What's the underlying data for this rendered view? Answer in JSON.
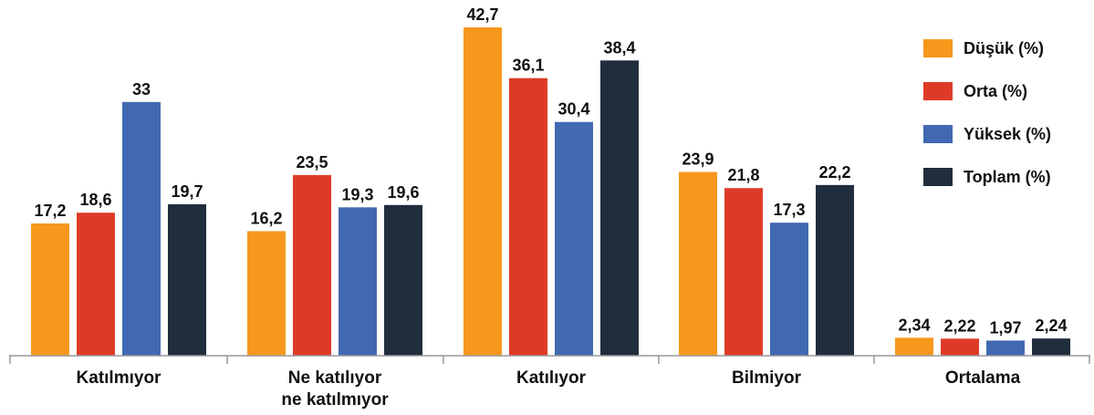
{
  "chart_data": {
    "type": "bar",
    "categories": [
      "Katılmıyor",
      "Ne katılıyor\nne katılmıyor",
      "Katılıyor",
      "Bilmiyor",
      "Ortalama"
    ],
    "series": [
      {
        "name": "Düşük (%)",
        "color": "#F7981D",
        "values": [
          17.2,
          16.2,
          42.7,
          23.9,
          2.34
        ],
        "labels": [
          "17,2",
          "16,2",
          "42,7",
          "23,9",
          "2,34"
        ]
      },
      {
        "name": "Orta (%)",
        "color": "#DE3B26",
        "values": [
          18.6,
          23.5,
          36.1,
          21.8,
          2.22
        ],
        "labels": [
          "18,6",
          "23,5",
          "36,1",
          "21,8",
          "2,22"
        ]
      },
      {
        "name": "Yüksek (%)",
        "color": "#4169B1",
        "values": [
          33,
          19.3,
          30.4,
          17.3,
          1.97
        ],
        "labels": [
          "33",
          "19,3",
          "30,4",
          "17,3",
          "1,97"
        ]
      },
      {
        "name": "Toplam (%)",
        "color": "#1F2D3D",
        "values": [
          19.7,
          19.6,
          38.4,
          22.2,
          2.24
        ],
        "labels": [
          "19,7",
          "19,6",
          "38,4",
          "22,2",
          "2,24"
        ]
      }
    ],
    "title": "",
    "xlabel": "",
    "ylabel": "",
    "ylim": [
      0,
      45
    ],
    "grid": false,
    "legend_position": "top-right"
  }
}
